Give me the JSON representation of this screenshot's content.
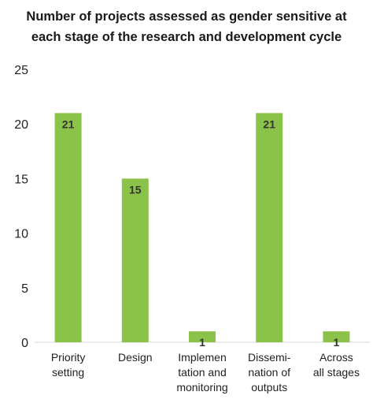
{
  "title_lines": [
    "Number of projects assessed as gender sensitive at",
    "each stage of the research and development cycle"
  ],
  "chart_data": {
    "type": "bar",
    "title": "Number of projects assessed as gender sensitive at each stage of the research and development cycle",
    "categories": [
      [
        "Priority",
        "setting"
      ],
      [
        "Design"
      ],
      [
        "Implemen",
        "tation and",
        "monitoring"
      ],
      [
        "Dissemi-",
        "nation of",
        "outputs"
      ],
      [
        "Across",
        "all stages"
      ]
    ],
    "values": [
      21,
      15,
      1,
      21,
      1
    ],
    "data_labels": [
      "21",
      "15",
      "1",
      "21",
      "1"
    ],
    "ylim": [
      0,
      25
    ],
    "yticks": [
      0,
      5,
      10,
      15,
      20,
      25
    ],
    "grid": false,
    "bar_color": "#8bc34a"
  }
}
